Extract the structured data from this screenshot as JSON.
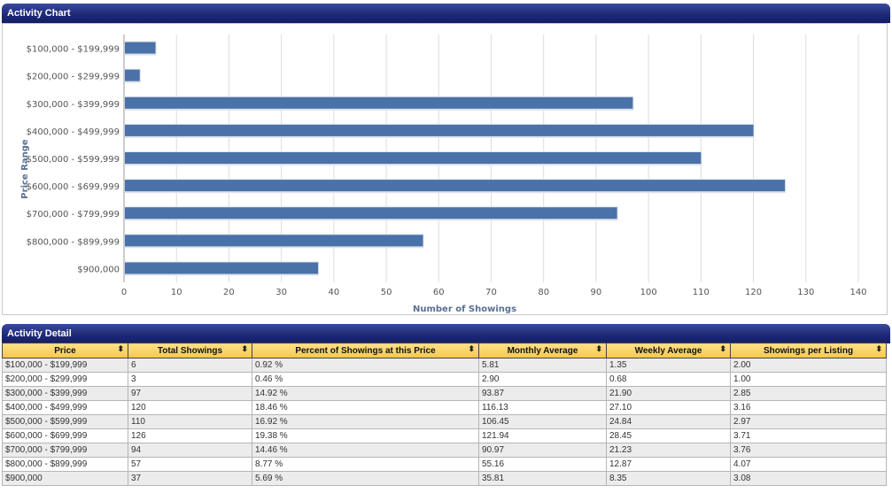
{
  "chart_panel": {
    "title": "Activity Chart"
  },
  "detail_panel": {
    "title": "Activity Detail"
  },
  "colors": {
    "bar": "#4a72a8",
    "header": "#1f2a78",
    "table_header": "#f7c84a"
  },
  "chart_data": {
    "type": "bar",
    "orientation": "horizontal",
    "categories": [
      "$100,000 - $199,999",
      "$200,000 - $299,999",
      "$300,000 - $399,999",
      "$400,000 - $499,999",
      "$500,000 - $599,999",
      "$600,000 - $699,999",
      "$700,000 - $799,999",
      "$800,000 - $899,999",
      "$900,000"
    ],
    "values": [
      6,
      3,
      97,
      120,
      110,
      126,
      94,
      57,
      37
    ],
    "xlabel": "Number of Showings",
    "ylabel": "Price Range",
    "xlim": [
      0,
      140
    ],
    "xticks": [
      0,
      10,
      20,
      30,
      40,
      50,
      60,
      70,
      80,
      90,
      100,
      110,
      120,
      130,
      140
    ],
    "grid": true,
    "legend": "none"
  },
  "table": {
    "columns": [
      "Price",
      "Total Showings",
      "Percent of Showings at this Price",
      "Monthly Average",
      "Weekly Average",
      "Showings per Listing"
    ],
    "sort_icon": "sort-icon",
    "rows": [
      [
        "$100,000 - $199,999",
        "6",
        "0.92 %",
        "5.81",
        "1.35",
        "2.00"
      ],
      [
        "$200,000 - $299,999",
        "3",
        "0.46 %",
        "2.90",
        "0.68",
        "1.00"
      ],
      [
        "$300,000 - $399,999",
        "97",
        "14.92 %",
        "93.87",
        "21.90",
        "2.85"
      ],
      [
        "$400,000 - $499,999",
        "120",
        "18.46 %",
        "116.13",
        "27.10",
        "3.16"
      ],
      [
        "$500,000 - $599,999",
        "110",
        "16.92 %",
        "106.45",
        "24.84",
        "2.97"
      ],
      [
        "$600,000 - $699,999",
        "126",
        "19.38 %",
        "121.94",
        "28.45",
        "3.71"
      ],
      [
        "$700,000 - $799,999",
        "94",
        "14.46 %",
        "90.97",
        "21.23",
        "3.76"
      ],
      [
        "$800,000 - $899,999",
        "57",
        "8.77 %",
        "55.16",
        "12.87",
        "4.07"
      ],
      [
        "$900,000",
        "37",
        "5.69 %",
        "35.81",
        "8.35",
        "3.08"
      ]
    ]
  }
}
